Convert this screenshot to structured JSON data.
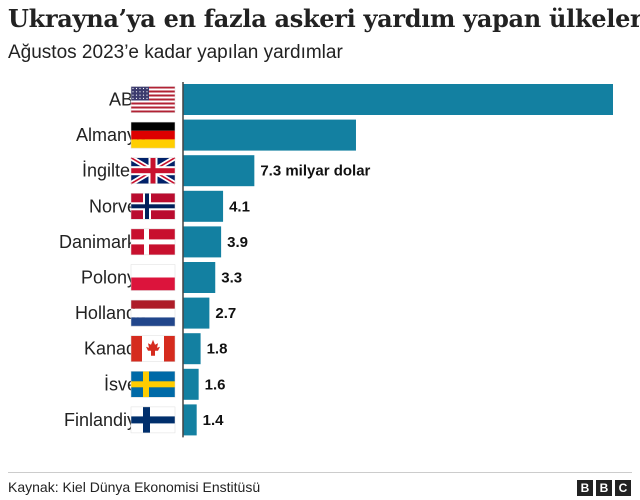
{
  "chart_data": {
    "type": "bar",
    "orientation": "horizontal",
    "title": "Ukrayna’ya en fazla askeri yardım yapan ülkeler",
    "subtitle": "Ağustos 2023’e kadar yapılan yardımlar",
    "unit": "milyar dolar",
    "categories": [
      "ABD",
      "Almanya",
      "İngiltere",
      "Norveç",
      "Danimarka",
      "Polonya",
      "Hollanda",
      "Kanada",
      "İsveç",
      "Finlandiya"
    ],
    "flags": [
      "usa-flag",
      "germany-flag",
      "uk-flag",
      "norway-flag",
      "denmark-flag",
      "poland-flag",
      "netherlands-flag",
      "canada-flag",
      "sweden-flag",
      "finland-flag"
    ],
    "values": [
      44.0,
      17.7,
      7.3,
      4.1,
      3.9,
      3.3,
      2.7,
      1.8,
      1.6,
      1.4
    ],
    "value_labels": [
      "",
      "",
      "7.3 milyar dolar",
      "4.1",
      "3.9",
      "3.3",
      "2.7",
      "1.8",
      "1.6",
      "1.4"
    ],
    "bar_color": "#1380a1",
    "xlim": [
      0,
      44
    ]
  },
  "footer": {
    "source": "Kaynak: Kiel Dünya Ekonomisi Enstitüsü",
    "logo_letters": [
      "B",
      "B",
      "C"
    ]
  }
}
